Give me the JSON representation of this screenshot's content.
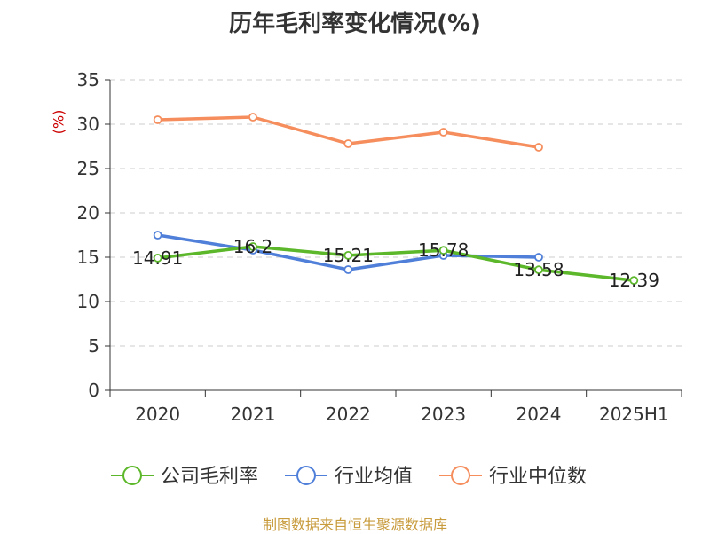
{
  "chart_data": {
    "type": "line",
    "title": "历年毛利率变化情况(%)",
    "ylabel": "(%)",
    "xlabel": "",
    "categories": [
      "2020",
      "2021",
      "2022",
      "2023",
      "2024",
      "2025H1"
    ],
    "ylim": [
      0,
      35
    ],
    "yticks": [
      0,
      5,
      10,
      15,
      20,
      25,
      30,
      35
    ],
    "grid": true,
    "legend_position": "bottom",
    "series": [
      {
        "name": "公司毛利率",
        "color": "#5cb82a",
        "values": [
          14.91,
          16.2,
          15.21,
          15.78,
          13.58,
          12.39
        ],
        "labels": [
          "14.91",
          "16.2",
          "15.21",
          "15.78",
          "13.58",
          "12.39"
        ]
      },
      {
        "name": "行业均值",
        "color": "#4f7fd9",
        "values": [
          17.5,
          15.8,
          13.6,
          15.2,
          15.0,
          null
        ]
      },
      {
        "name": "行业中位数",
        "color": "#f58d5c",
        "values": [
          30.5,
          30.8,
          27.8,
          29.1,
          27.4,
          null
        ]
      }
    ]
  },
  "source": "制图数据来自恒生聚源数据库"
}
